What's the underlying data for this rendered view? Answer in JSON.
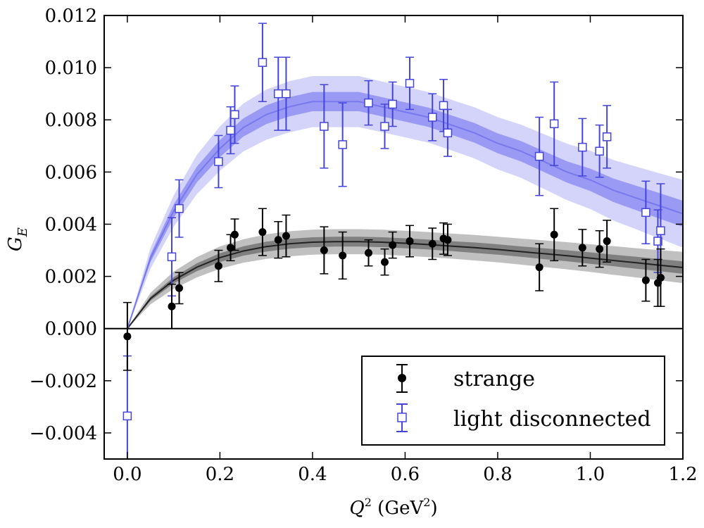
{
  "chart_data": {
    "type": "scatter",
    "title": "",
    "xlabel_main": "Q",
    "xlabel_sup": "2",
    "xlabel_unit_open": " (GeV",
    "xlabel_unit_sup": "2",
    "xlabel_unit_close": ")",
    "ylabel_main": "G",
    "ylabel_sub": "E",
    "xlim": [
      -0.05,
      1.2
    ],
    "ylim": [
      -0.005,
      0.012
    ],
    "xticks": [
      0.0,
      0.2,
      0.4,
      0.6,
      0.8,
      1.0,
      1.2
    ],
    "xtick_labels": [
      "0.0",
      "0.2",
      "0.4",
      "0.6",
      "0.8",
      "1.0",
      "1.2"
    ],
    "yticks": [
      -0.004,
      -0.002,
      0.0,
      0.002,
      0.004,
      0.006,
      0.008,
      0.01,
      0.012
    ],
    "ytick_labels": [
      "−0.004",
      "−0.002",
      "0.000",
      "0.002",
      "0.004",
      "0.006",
      "0.008",
      "0.010",
      "0.012"
    ],
    "hline_y": 0.0,
    "legend_position": "lower-right",
    "series": [
      {
        "name": "strange",
        "marker": "filled-circle",
        "color": "#000000",
        "band_inner_color": "#808080",
        "band_outer_color": "#c0c0c0",
        "line_color": "#222222",
        "fit": {
          "x": [
            0.0,
            0.05,
            0.1,
            0.15,
            0.2,
            0.25,
            0.3,
            0.35,
            0.4,
            0.45,
            0.5,
            0.55,
            0.6,
            0.65,
            0.7,
            0.75,
            0.8,
            0.85,
            0.9,
            0.95,
            1.0,
            1.05,
            1.1,
            1.15,
            1.2
          ],
          "y": [
            0.0,
            0.00115,
            0.00185,
            0.00235,
            0.00272,
            0.00297,
            0.00314,
            0.00325,
            0.00331,
            0.00333,
            0.00333,
            0.00331,
            0.00327,
            0.00322,
            0.00316,
            0.0031,
            0.00303,
            0.00295,
            0.00287,
            0.00279,
            0.0027,
            0.00261,
            0.00252,
            0.00243,
            0.00234
          ],
          "inner_halfwidth": [
            0.0,
            8e-05,
            0.00012,
            0.00015,
            0.00017,
            0.00018,
            0.00019,
            0.00019,
            0.00019,
            0.00019,
            0.00019,
            0.00019,
            0.00019,
            0.00019,
            0.00019,
            0.0002,
            0.0002,
            0.0002,
            0.00021,
            0.00021,
            0.00022,
            0.00022,
            0.00023,
            0.00023,
            0.00024
          ],
          "outer_halfwidth": [
            0.0,
            0.00022,
            0.00033,
            0.00039,
            0.00043,
            0.00045,
            0.00047,
            0.00048,
            0.00048,
            0.00048,
            0.00048,
            0.00048,
            0.00048,
            0.00048,
            0.00048,
            0.00049,
            0.00049,
            0.0005,
            0.00051,
            0.00052,
            0.00053,
            0.00055,
            0.00056,
            0.00058,
            0.0006
          ]
        },
        "points": [
          {
            "x": 0.0,
            "y": -0.0003,
            "err": 0.0013
          },
          {
            "x": 0.096,
            "y": 0.00085,
            "err": 0.00085
          },
          {
            "x": 0.112,
            "y": 0.00155,
            "err": 0.0006
          },
          {
            "x": 0.197,
            "y": 0.0024,
            "err": 0.0006
          },
          {
            "x": 0.223,
            "y": 0.0031,
            "err": 0.0005
          },
          {
            "x": 0.232,
            "y": 0.0036,
            "err": 0.0006
          },
          {
            "x": 0.292,
            "y": 0.0037,
            "err": 0.0009
          },
          {
            "x": 0.326,
            "y": 0.0034,
            "err": 0.0007
          },
          {
            "x": 0.343,
            "y": 0.00355,
            "err": 0.0008
          },
          {
            "x": 0.425,
            "y": 0.003,
            "err": 0.0009
          },
          {
            "x": 0.465,
            "y": 0.0028,
            "err": 0.0009
          },
          {
            "x": 0.521,
            "y": 0.0029,
            "err": 0.0005
          },
          {
            "x": 0.556,
            "y": 0.00255,
            "err": 0.0005
          },
          {
            "x": 0.573,
            "y": 0.0032,
            "err": 0.0005
          },
          {
            "x": 0.61,
            "y": 0.00335,
            "err": 0.0006
          },
          {
            "x": 0.659,
            "y": 0.00325,
            "err": 0.0006
          },
          {
            "x": 0.683,
            "y": 0.00345,
            "err": 0.0006
          },
          {
            "x": 0.692,
            "y": 0.0034,
            "err": 0.0006
          },
          {
            "x": 0.89,
            "y": 0.00235,
            "err": 0.0009
          },
          {
            "x": 0.922,
            "y": 0.0036,
            "err": 0.001
          },
          {
            "x": 0.983,
            "y": 0.0031,
            "err": 0.0007
          },
          {
            "x": 1.02,
            "y": 0.00305,
            "err": 0.0007
          },
          {
            "x": 1.036,
            "y": 0.00335,
            "err": 0.0008
          },
          {
            "x": 1.12,
            "y": 0.00185,
            "err": 0.0008
          },
          {
            "x": 1.146,
            "y": 0.00175,
            "err": 0.0009
          },
          {
            "x": 1.152,
            "y": 0.00195,
            "err": 0.0011
          }
        ]
      },
      {
        "name": "light disconnected",
        "marker": "open-square",
        "color": "#4444dd",
        "band_inner_color": "#9a9af4",
        "band_outer_color": "#d4d4fb",
        "line_color": "#7878ee",
        "fit": {
          "x": [
            0.0,
            0.05,
            0.1,
            0.15,
            0.2,
            0.25,
            0.3,
            0.35,
            0.4,
            0.45,
            0.5,
            0.55,
            0.6,
            0.65,
            0.7,
            0.75,
            0.8,
            0.85,
            0.9,
            0.95,
            1.0,
            1.05,
            1.1,
            1.15,
            1.2
          ],
          "y": [
            0.0,
            0.0027,
            0.0045,
            0.0059,
            0.0069,
            0.0077,
            0.0082,
            0.0085,
            0.0087,
            0.0087,
            0.0087,
            0.0085,
            0.0083,
            0.0081,
            0.0078,
            0.0075,
            0.0071,
            0.0068,
            0.0064,
            0.006,
            0.0057,
            0.0053,
            0.005,
            0.0047,
            0.0044
          ],
          "inner_halfwidth": [
            0.0,
            0.00015,
            0.00025,
            0.0003,
            0.00033,
            0.00035,
            0.00036,
            0.00037,
            0.00037,
            0.00037,
            0.00037,
            0.00037,
            0.00037,
            0.00037,
            0.00037,
            0.00038,
            0.00038,
            0.00039,
            0.0004,
            0.00041,
            0.00043,
            0.00045,
            0.00047,
            0.00049,
            0.0005
          ],
          "outer_halfwidth": [
            0.0,
            0.0004,
            0.0006,
            0.00075,
            0.00085,
            0.00092,
            0.00096,
            0.00098,
            0.00098,
            0.00098,
            0.00098,
            0.00097,
            0.00097,
            0.00097,
            0.00097,
            0.00098,
            0.001,
            0.00102,
            0.00105,
            0.00108,
            0.00112,
            0.00116,
            0.0012,
            0.00125,
            0.0013
          ]
        },
        "points": [
          {
            "x": 0.0,
            "y": -0.00335,
            "err": 0.0023
          },
          {
            "x": 0.096,
            "y": 0.00275,
            "err": 0.0015
          },
          {
            "x": 0.112,
            "y": 0.0046,
            "err": 0.0011
          },
          {
            "x": 0.197,
            "y": 0.0064,
            "err": 0.001
          },
          {
            "x": 0.223,
            "y": 0.0076,
            "err": 0.0009
          },
          {
            "x": 0.232,
            "y": 0.0082,
            "err": 0.0011
          },
          {
            "x": 0.292,
            "y": 0.0102,
            "err": 0.0015
          },
          {
            "x": 0.326,
            "y": 0.009,
            "err": 0.0014
          },
          {
            "x": 0.343,
            "y": 0.009,
            "err": 0.0014
          },
          {
            "x": 0.425,
            "y": 0.00775,
            "err": 0.0016
          },
          {
            "x": 0.465,
            "y": 0.00705,
            "err": 0.0016
          },
          {
            "x": 0.521,
            "y": 0.00865,
            "err": 0.00085
          },
          {
            "x": 0.556,
            "y": 0.00775,
            "err": 0.00085
          },
          {
            "x": 0.573,
            "y": 0.0086,
            "err": 0.00085
          },
          {
            "x": 0.61,
            "y": 0.0094,
            "err": 0.001
          },
          {
            "x": 0.659,
            "y": 0.0081,
            "err": 0.0009
          },
          {
            "x": 0.683,
            "y": 0.00855,
            "err": 0.001
          },
          {
            "x": 0.692,
            "y": 0.0075,
            "err": 0.0009
          },
          {
            "x": 0.89,
            "y": 0.0066,
            "err": 0.0015
          },
          {
            "x": 0.922,
            "y": 0.00785,
            "err": 0.0016
          },
          {
            "x": 0.983,
            "y": 0.00695,
            "err": 0.0011
          },
          {
            "x": 1.02,
            "y": 0.0068,
            "err": 0.001
          },
          {
            "x": 1.036,
            "y": 0.00735,
            "err": 0.0012
          },
          {
            "x": 1.12,
            "y": 0.00445,
            "err": 0.0012
          },
          {
            "x": 1.146,
            "y": 0.00335,
            "err": 0.0012
          },
          {
            "x": 1.152,
            "y": 0.00375,
            "err": 0.0018
          }
        ]
      }
    ]
  }
}
